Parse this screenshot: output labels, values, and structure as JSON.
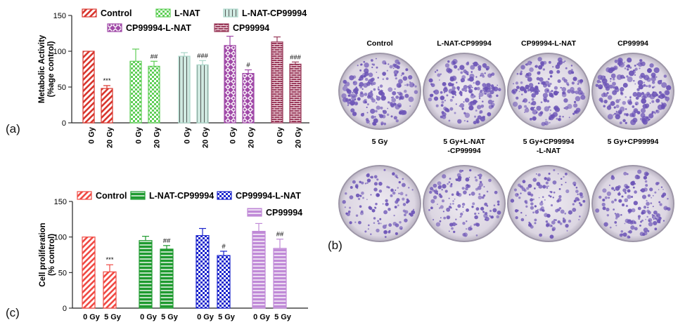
{
  "panel_labels": {
    "a": "(a)",
    "b": "(b)",
    "c": "(c)"
  },
  "colors": {
    "control": "#d9362e",
    "lnat_a": "#5fce57",
    "lnat_cp_a": "#a9d6c8",
    "cp_lnat_a": "#a14aa8",
    "cp_a": "#9a3b5b",
    "control_c": "#f04a44",
    "lnat_cp_c": "#1e9a2f",
    "cp_lnat_c": "#1a24cc",
    "cp_c": "#c08ad7",
    "plate_stain": "#6b53b6"
  },
  "chart_data": [
    {
      "type": "bar",
      "ylabel": "Metabolic Activity\n(%age control)",
      "ylim": [
        0,
        150
      ],
      "yticks": [
        "0",
        "50",
        "100",
        "150"
      ],
      "groups": [
        {
          "legend": "Control",
          "categories": [
            "0 Gy",
            "20 Gy"
          ],
          "values": [
            100,
            48
          ],
          "errors": [
            0,
            4
          ],
          "annotations": [
            "",
            "***"
          ],
          "pattern": "hatch"
        },
        {
          "legend": "L-NAT",
          "categories": [
            "0 Gy",
            "20 Gy"
          ],
          "values": [
            86,
            79
          ],
          "errors": [
            17,
            7
          ],
          "annotations": [
            "",
            "##"
          ],
          "pattern": "check"
        },
        {
          "legend": "L-NAT-CP99994",
          "categories": [
            "0 Gy",
            "20 Gy"
          ],
          "values": [
            93,
            81
          ],
          "errors": [
            5,
            6
          ],
          "annotations": [
            "",
            "###"
          ],
          "pattern": "vlines"
        },
        {
          "legend": "CP99994-L-NAT",
          "categories": [
            "0 Gy",
            "20 Gy"
          ],
          "values": [
            108,
            69
          ],
          "errors": [
            13,
            5
          ],
          "annotations": [
            "",
            "#"
          ],
          "pattern": "diamond"
        },
        {
          "legend": "CP99994",
          "categories": [
            "0 Gy",
            "20 Gy"
          ],
          "values": [
            113,
            82
          ],
          "errors": [
            7,
            3
          ],
          "annotations": [
            "",
            "###"
          ],
          "pattern": "brick"
        }
      ]
    },
    {
      "type": "bar",
      "ylabel": "Cell proliferation\n(% control)",
      "ylim": [
        0,
        150
      ],
      "yticks": [
        "0",
        "50",
        "100",
        "150"
      ],
      "groups": [
        {
          "legend": "Control",
          "categories": [
            "0 Gy",
            "5 Gy"
          ],
          "values": [
            100,
            51
          ],
          "errors": [
            0,
            10
          ],
          "annotations": [
            "",
            "***"
          ],
          "pattern": "hatch"
        },
        {
          "legend": "L-NAT-CP99994",
          "categories": [
            "0 Gy",
            "5 Gy"
          ],
          "values": [
            95,
            83
          ],
          "errors": [
            6,
            5
          ],
          "annotations": [
            "",
            "##"
          ],
          "pattern": "hlines"
        },
        {
          "legend": "CP99994-L-NAT",
          "categories": [
            "0 Gy",
            "5 Gy"
          ],
          "values": [
            102,
            74
          ],
          "errors": [
            10,
            6
          ],
          "annotations": [
            "",
            "#"
          ],
          "pattern": "check"
        },
        {
          "legend": "CP99994",
          "categories": [
            "0 Gy",
            "5 Gy"
          ],
          "values": [
            108,
            84
          ],
          "errors": [
            11,
            13
          ],
          "annotations": [
            "",
            "##"
          ],
          "pattern": "hlines"
        }
      ]
    }
  ],
  "plates": {
    "row1": [
      "Control",
      "L-NAT-CP99994",
      "CP99994-L-NAT",
      "CP99994"
    ],
    "row2": [
      [
        "5 Gy"
      ],
      [
        "5 Gy+L-NAT",
        "-CP99994"
      ],
      [
        "5 Gy+CP99994",
        "-L-NAT"
      ],
      [
        "5 Gy+CP99994"
      ]
    ],
    "colony_density": [
      0.9,
      0.85,
      0.85,
      0.95,
      0.55,
      0.65,
      0.6,
      0.7
    ]
  }
}
